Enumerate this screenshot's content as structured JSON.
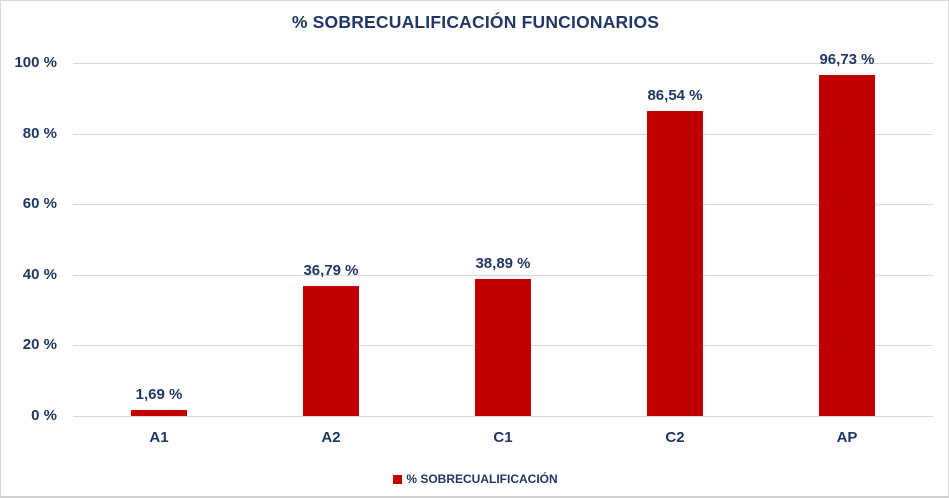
{
  "chart_data": {
    "type": "bar",
    "title": "% SOBRECUALIFICACIÓN FUNCIONARIOS",
    "categories": [
      "A1",
      "A2",
      "C1",
      "C2",
      "AP"
    ],
    "values": [
      1.69,
      36.79,
      38.89,
      86.54,
      96.73
    ],
    "value_labels": [
      "1,69 %",
      "36,79 %",
      "38,89 %",
      "86,54 %",
      "96,73 %"
    ],
    "y_ticks": [
      {
        "value": 0,
        "label": "0 %"
      },
      {
        "value": 20,
        "label": "20 %"
      },
      {
        "value": 40,
        "label": "40 %"
      },
      {
        "value": 60,
        "label": "60 %"
      },
      {
        "value": 80,
        "label": "80 %"
      },
      {
        "value": 100,
        "label": "100 %"
      }
    ],
    "ylim": [
      0,
      100
    ],
    "grid": true,
    "legend": "% SOBRECUALIFICACIÓN",
    "legend_position": "bottom",
    "bar_color": "#c00000",
    "text_color": "#1f3864",
    "gridline_color": "#d9d9d9"
  }
}
